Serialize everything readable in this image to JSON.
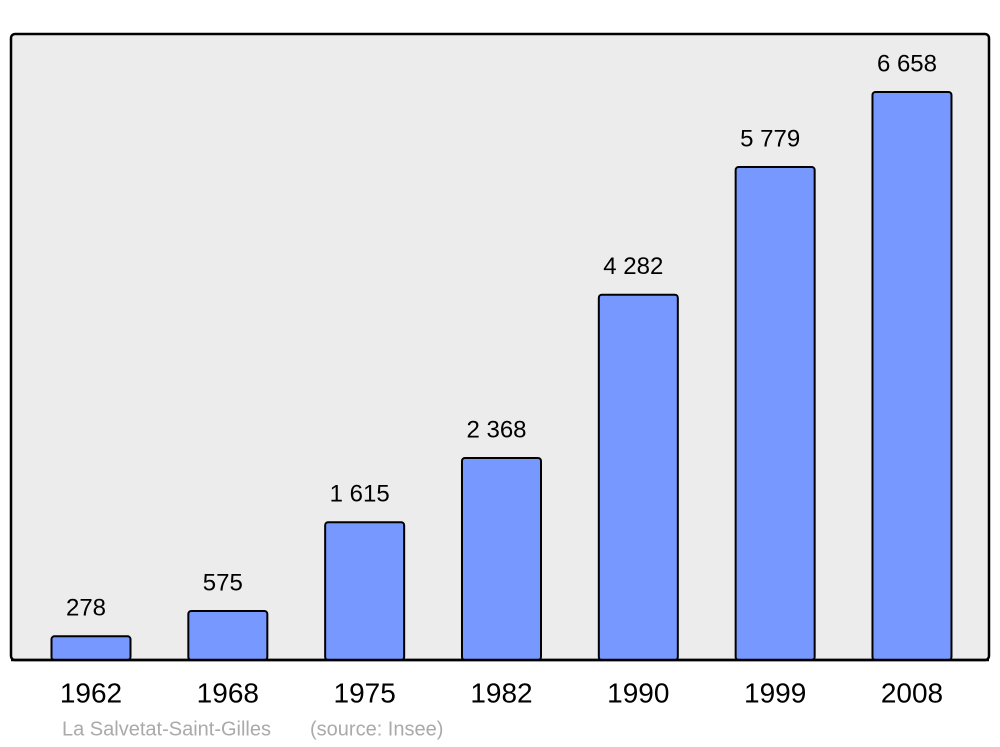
{
  "chart_data": {
    "type": "bar",
    "categories": [
      "1962",
      "1968",
      "1975",
      "1982",
      "1990",
      "1999",
      "2008"
    ],
    "values": [
      278,
      575,
      1615,
      2368,
      4282,
      5779,
      6658
    ],
    "value_labels": [
      "278",
      "575",
      "1 615",
      "2 368",
      "4 282",
      "5 779",
      "6 658"
    ],
    "color": "#7799ff",
    "caption": "La Salvetat-Saint-Gilles",
    "source": "(source: Insee)"
  }
}
